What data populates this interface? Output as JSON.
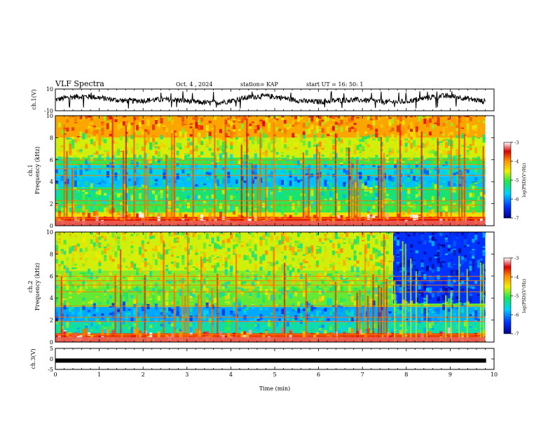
{
  "header": {
    "title": "VLF Spectra",
    "date": "Oct. 4 , 2024",
    "station": "station= KAP",
    "start_ut": "start UT =  16: 50: 1"
  },
  "chart_data": [
    {
      "type": "line",
      "panel": "ch1-waveform",
      "ylabel": "ch.1(V)",
      "ylim": [
        -10,
        10
      ],
      "yticks": [
        -10,
        10
      ],
      "xlim": [
        0,
        10
      ],
      "amplitude_range_v": [
        -8,
        8
      ]
    },
    {
      "type": "heatmap",
      "panel": "ch1-spectrogram",
      "ylabel_line1": "ch.1",
      "ylabel_line2": "Frequency (kHz)",
      "ylim": [
        0,
        10
      ],
      "yticks": [
        0,
        2,
        4,
        6,
        8,
        10
      ],
      "xlim": [
        0,
        9.8
      ],
      "colorbar": {
        "label": "log(PSD)(V²/Hz)",
        "range": [
          -7,
          -3
        ],
        "ticks": [
          -3,
          -4,
          -5,
          -6,
          -7
        ]
      },
      "bands": [
        {
          "f0": 0.0,
          "f1": 0.8,
          "level": -3.6
        },
        {
          "f0": 0.8,
          "f1": 1.2,
          "level": -4.4
        },
        {
          "f0": 1.2,
          "f1": 2.2,
          "level": -5.0
        },
        {
          "f0": 2.2,
          "f1": 3.5,
          "level": -5.2
        },
        {
          "f0": 3.5,
          "f1": 4.5,
          "level": -5.8
        },
        {
          "f0": 4.5,
          "f1": 5.5,
          "level": -5.6
        },
        {
          "f0": 5.5,
          "f1": 6.2,
          "level": -5.0
        },
        {
          "f0": 6.2,
          "f1": 8.0,
          "level": -4.6
        },
        {
          "f0": 8.0,
          "f1": 10.0,
          "level": -4.1
        }
      ]
    },
    {
      "type": "heatmap",
      "panel": "ch2-spectrogram",
      "ylabel_line1": "ch.2",
      "ylabel_line2": "Frequency (kHz)",
      "ylim": [
        0,
        10
      ],
      "yticks": [
        0,
        2,
        4,
        6,
        8,
        10
      ],
      "xlim": [
        0,
        9.8
      ],
      "colorbar": {
        "label": "log(PSD)(V²/Hz)",
        "range": [
          -7,
          -3
        ],
        "ticks": [
          -3,
          -4,
          -5,
          -6,
          -7
        ]
      },
      "bands": [
        {
          "f0": 0.0,
          "f1": 0.8,
          "level": -3.7
        },
        {
          "f0": 0.8,
          "f1": 1.8,
          "level": -5.4
        },
        {
          "f0": 1.8,
          "f1": 3.2,
          "level": -5.9
        },
        {
          "f0": 3.2,
          "f1": 5.0,
          "level": -4.9
        },
        {
          "f0": 5.0,
          "f1": 6.5,
          "level": -4.8
        },
        {
          "f0": 6.5,
          "f1": 10.0,
          "level": -4.6
        }
      ],
      "quiet_region": {
        "t_start": 7.7,
        "f0": 3.5,
        "f1": 10.0,
        "level": -6.4
      }
    },
    {
      "type": "line",
      "panel": "ch3-waveform",
      "ylabel": "ch.3(V)",
      "ylim": [
        -5,
        5
      ],
      "yticks": [
        -5,
        0,
        5
      ],
      "value_v": -0.8,
      "xlim": [
        0,
        10
      ],
      "xlabel": "Time (min)",
      "xticks": [
        0,
        1,
        2,
        3,
        4,
        5,
        6,
        7,
        8,
        9,
        10
      ]
    }
  ],
  "colors": {
    "colormap": [
      "#0000b4",
      "#0050ff",
      "#00d2ff",
      "#28e650",
      "#f0f000",
      "#ff8c00",
      "#dc0000",
      "#ffffff"
    ],
    "waveform": "#000000"
  }
}
